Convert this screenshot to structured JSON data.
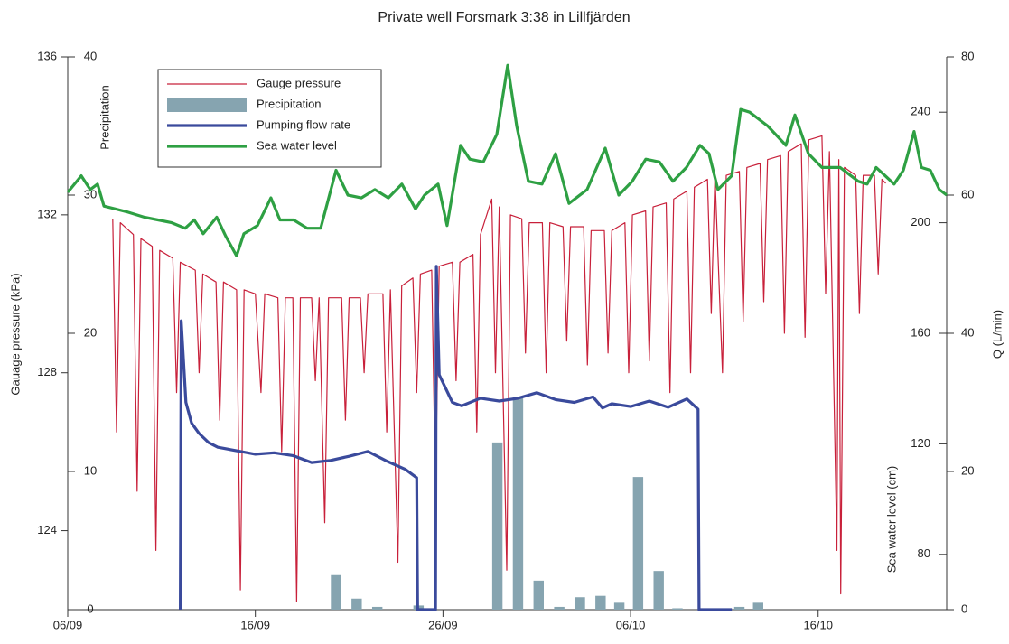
{
  "chart_data": {
    "type": "line",
    "title": "Private well Forsmark 3:38 in Lillfjärden",
    "xlim": [
      0,
      46.85
    ],
    "xticks": [
      {
        "value": 0,
        "label": "06/09"
      },
      {
        "value": 10,
        "label": "16/09"
      },
      {
        "value": 20,
        "label": "26/09"
      },
      {
        "value": 30,
        "label": "06/10"
      },
      {
        "value": 40,
        "label": "16/10"
      }
    ],
    "axes": [
      {
        "label": "Gauage pressure (kPa)",
        "lim": [
          122,
          136
        ],
        "ticks": [
          124,
          128,
          132,
          136
        ]
      },
      {
        "label": "Precipitation",
        "lim": [
          0,
          40
        ],
        "ticks": [
          0,
          10,
          20,
          30,
          40
        ]
      },
      {
        "label": "Sea water level (cm)",
        "lim": [
          60,
          260
        ],
        "ticks": [
          80,
          120,
          160,
          200,
          240
        ]
      },
      {
        "label": "Q (L/min)",
        "lim": [
          0,
          80
        ],
        "ticks": [
          0,
          20,
          40,
          60,
          80
        ]
      }
    ],
    "series": [
      {
        "name": "Gauge pressure",
        "type": "line",
        "axis": 0,
        "color": "#c8203a",
        "x": [
          2.4,
          2.6,
          2.8,
          3.5,
          3.7,
          3.9,
          4.5,
          4.7,
          4.9,
          5.6,
          5.8,
          6.0,
          6.8,
          7.0,
          7.2,
          7.9,
          8.1,
          8.3,
          9.0,
          9.2,
          9.4,
          10.0,
          10.3,
          10.5,
          11.2,
          11.4,
          11.6,
          12.0,
          12.2,
          12.4,
          13.0,
          13.2,
          13.4,
          13.7,
          13.9,
          14.6,
          14.8,
          15.0,
          15.6,
          15.8,
          16.0,
          16.8,
          17.0,
          17.2,
          17.6,
          17.8,
          18.4,
          18.6,
          18.8,
          19.4,
          19.6,
          19.8,
          20.5,
          20.7,
          20.9,
          21.6,
          21.8,
          22.0,
          22.6,
          22.8,
          23.0,
          23.4,
          23.6,
          24.2,
          24.4,
          24.6,
          25.3,
          25.5,
          25.7,
          26.4,
          26.6,
          26.8,
          27.5,
          27.7,
          27.9,
          28.6,
          28.8,
          29.0,
          29.7,
          29.9,
          30.1,
          30.8,
          31.0,
          31.2,
          31.9,
          32.1,
          32.3,
          33.0,
          33.2,
          33.4,
          34.1,
          34.3,
          34.5,
          34.9,
          35.1,
          35.8,
          36.0,
          36.2,
          36.9,
          37.1,
          37.3,
          38.0,
          38.2,
          38.4,
          39.1,
          39.3,
          39.5,
          40.2,
          40.4,
          40.6,
          41.0,
          41.1,
          41.2,
          41.4,
          42.0,
          42.2,
          42.4,
          43.0,
          43.2,
          43.4,
          43.6
        ],
        "values": [
          131.9,
          126.5,
          131.8,
          131.5,
          125.0,
          131.4,
          131.2,
          123.5,
          131.1,
          130.9,
          127.5,
          130.8,
          130.6,
          128.0,
          130.5,
          130.3,
          126.8,
          130.3,
          130.1,
          122.5,
          130.1,
          130.0,
          127.5,
          130.0,
          129.9,
          126.0,
          129.9,
          129.9,
          122.2,
          129.9,
          129.9,
          127.8,
          129.9,
          124.2,
          129.9,
          129.9,
          126.8,
          129.9,
          129.9,
          128.0,
          130.0,
          130.0,
          126.5,
          130.1,
          123.2,
          130.2,
          130.4,
          127.5,
          130.5,
          130.6,
          125.0,
          130.7,
          130.8,
          127.8,
          130.8,
          131.0,
          126.5,
          131.5,
          132.4,
          128.0,
          132.2,
          123.0,
          132.0,
          131.9,
          128.5,
          131.8,
          131.8,
          128.0,
          131.8,
          131.7,
          128.8,
          131.7,
          131.7,
          128.2,
          131.6,
          131.6,
          128.5,
          131.6,
          131.8,
          128.0,
          132.0,
          132.1,
          128.3,
          132.2,
          132.3,
          127.5,
          132.4,
          132.6,
          128.0,
          132.7,
          132.9,
          129.5,
          133.0,
          128.0,
          133.0,
          133.1,
          129.3,
          133.2,
          133.3,
          129.8,
          133.4,
          133.5,
          129.0,
          133.6,
          133.8,
          128.9,
          133.9,
          134.0,
          130.0,
          133.6,
          123.5,
          133.4,
          122.4,
          133.2,
          133.0,
          129.5,
          133.0,
          133.0,
          130.5,
          132.9,
          132.8
        ]
      },
      {
        "name": "Precipitation",
        "type": "bar",
        "axis": 1,
        "color": "#86a4b0",
        "x": [
          14.3,
          15.4,
          16.5,
          18.7,
          22.9,
          24.0,
          25.1,
          26.2,
          27.3,
          28.4,
          29.4,
          30.4,
          31.5,
          32.5,
          35.8,
          36.8
        ],
        "values": [
          2.5,
          0.8,
          0.2,
          0.3,
          12.1,
          15.4,
          2.1,
          0.2,
          0.9,
          1.0,
          0.5,
          9.6,
          2.8,
          0.1,
          0.2,
          0.5
        ]
      },
      {
        "name": "Pumping flow rate",
        "type": "line",
        "axis": 3,
        "color": "#3a4a9c",
        "x": [
          6.0,
          6.05,
          6.3,
          6.6,
          7.0,
          7.5,
          8.0,
          9.0,
          10,
          11,
          12,
          13,
          14,
          15,
          16,
          17,
          18,
          18.6,
          18.65,
          19.6,
          19.65,
          19.8,
          20.5,
          21,
          22,
          23,
          24,
          25,
          26,
          27,
          28,
          28.5,
          29,
          30,
          31,
          32,
          33,
          33.6,
          33.65,
          35.4
        ],
        "values": [
          0,
          41.8,
          30,
          27,
          25.5,
          24.2,
          23.5,
          23,
          22.5,
          22.7,
          22.3,
          21.3,
          21.6,
          22.2,
          22.9,
          21.5,
          20.3,
          19.1,
          0,
          0,
          49.7,
          34,
          30,
          29.5,
          30.6,
          30.2,
          30.6,
          31.4,
          30.4,
          30.0,
          30.8,
          29.2,
          29.8,
          29.4,
          30.2,
          29.3,
          30.5,
          29.0,
          0,
          0
        ]
      },
      {
        "name": "Sea water level",
        "type": "line",
        "axis": 2,
        "color": "#2ea043",
        "x": [
          0,
          0.72,
          1.2,
          1.59,
          1.93,
          3.13,
          4.09,
          4.81,
          5.54,
          6.26,
          6.74,
          7.22,
          7.94,
          8.43,
          9.0,
          9.39,
          10.11,
          10.83,
          11.31,
          12.04,
          12.76,
          13.48,
          14.3,
          14.93,
          15.65,
          16.37,
          17.09,
          17.81,
          18.54,
          19.02,
          19.74,
          20.22,
          20.94,
          21.43,
          22.15,
          22.87,
          23.45,
          23.93,
          24.55,
          25.28,
          26.0,
          26.72,
          27.68,
          28.65,
          29.37,
          30.09,
          30.81,
          31.54,
          32.26,
          32.98,
          33.7,
          34.18,
          34.66,
          35.39,
          35.87,
          36.35,
          37.31,
          38.28,
          38.76,
          39.48,
          40.2,
          41.17,
          42.13,
          42.61,
          43.09,
          43.57,
          44.05,
          44.54,
          45.11,
          45.5,
          45.98,
          46.46,
          46.85
        ],
        "values": [
          211,
          217,
          212,
          214,
          206,
          204,
          202,
          201,
          200,
          198,
          201,
          196,
          202,
          195,
          188,
          196,
          199,
          209,
          201,
          201,
          198,
          198,
          219,
          210,
          209,
          212,
          209,
          214,
          205,
          210,
          214,
          199,
          228,
          223,
          222,
          232,
          257,
          235,
          215,
          214,
          225,
          207,
          212,
          227,
          210,
          215,
          223,
          222,
          215,
          220,
          228,
          225,
          212,
          217,
          241,
          240,
          235,
          228,
          239,
          225,
          220,
          220,
          215,
          214,
          220,
          217,
          214,
          219,
          233,
          220,
          219,
          212,
          210
        ]
      }
    ]
  }
}
